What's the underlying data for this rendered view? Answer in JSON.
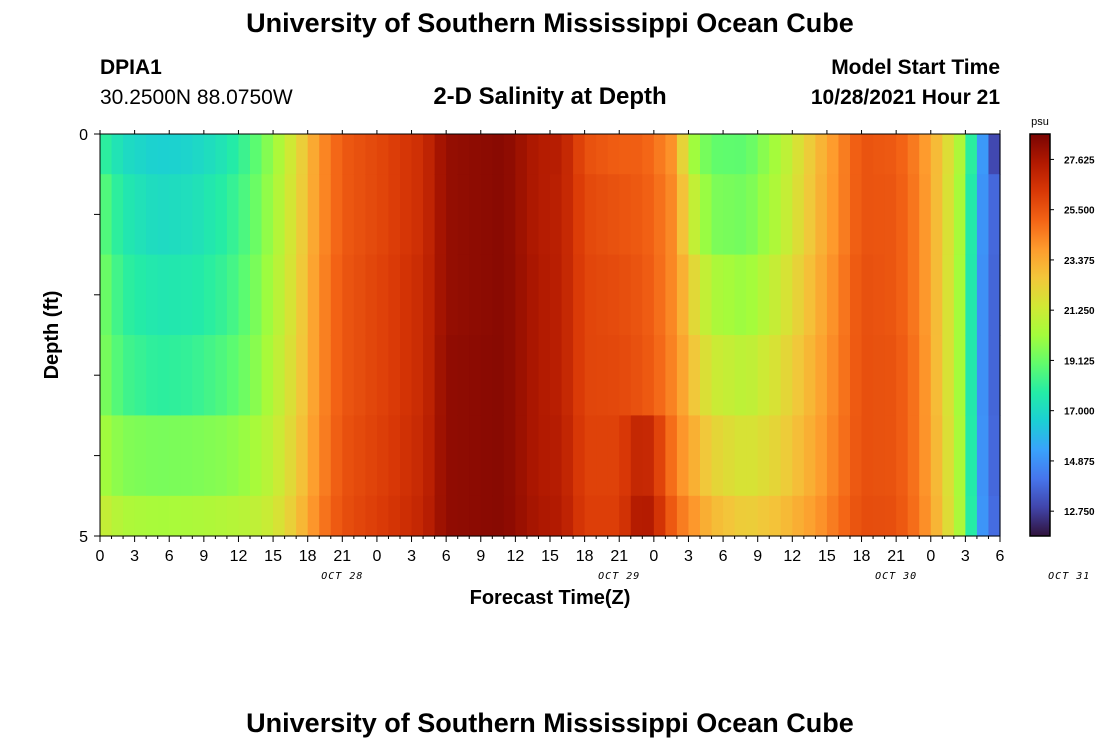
{
  "header": {
    "title": "University of Southern Mississippi Ocean Cube",
    "station_id": "DPIA1",
    "station_coords": "30.2500N  88.0750W",
    "plot_title": "2-D Salinity at Depth",
    "model_start_label": "Model Start Time",
    "model_start_time": "10/28/2021 Hour 21"
  },
  "footer": {
    "title": "University of Southern Mississippi Ocean Cube"
  },
  "chart_data": {
    "type": "heatmap",
    "title": "2-D Salinity at Depth",
    "xlabel": "Forecast Time(Z)",
    "ylabel": "Depth (ft)",
    "ylim": [
      0,
      5
    ],
    "y_ticks": [
      "0",
      "5"
    ],
    "x_tick_labels": [
      "0",
      "3",
      "6",
      "9",
      "12",
      "15",
      "18",
      "21",
      "0",
      "3",
      "6",
      "9",
      "12",
      "15",
      "18",
      "21",
      "0",
      "3",
      "6",
      "9",
      "12",
      "15",
      "18",
      "21",
      "0",
      "3",
      "6"
    ],
    "day_labels": [
      {
        "label": "OCT 28",
        "hour": 21
      },
      {
        "label": "OCT 29",
        "hour": 45
      },
      {
        "label": "OCT 30",
        "hour": 69
      },
      {
        "label": "OCT 31",
        "hour": 84
      }
    ],
    "x_hours_total": 78,
    "colorbar": {
      "unit": "psu",
      "min": 11.7,
      "max": 28.7,
      "labels": [
        "27.625",
        "25.500",
        "23.375",
        "21.250",
        "19.125",
        "17.000",
        "14.875",
        "12.750"
      ],
      "colors": [
        "#30123b",
        "#4145ab",
        "#4675ed",
        "#39a2fc",
        "#1bcfd4",
        "#24eca6",
        "#61fc6c",
        "#a4fc3b",
        "#d1e834",
        "#f3c63a",
        "#fe9b2d",
        "#f36315",
        "#d93806",
        "#b11901",
        "#7a0402"
      ]
    },
    "depth_layers": [
      0,
      1,
      2,
      3,
      4,
      5
    ],
    "time_keyframes": [
      {
        "hour": 0,
        "values": [
          18.2,
          19.0,
          19.5,
          19.7,
          20.3,
          21.2
        ]
      },
      {
        "hour": 2,
        "values": [
          17.1,
          17.6,
          18.0,
          18.4,
          19.6,
          20.5
        ]
      },
      {
        "hour": 5,
        "values": [
          16.6,
          17.0,
          17.5,
          17.9,
          19.4,
          20.3
        ]
      },
      {
        "hour": 8,
        "values": [
          16.8,
          17.2,
          17.6,
          18.1,
          19.5,
          20.4
        ]
      },
      {
        "hour": 11,
        "values": [
          17.5,
          17.9,
          18.2,
          18.7,
          19.7,
          20.6
        ]
      },
      {
        "hour": 13,
        "values": [
          18.5,
          18.8,
          19.1,
          19.4,
          20.1,
          20.8
        ]
      },
      {
        "hour": 15,
        "values": [
          20.0,
          20.2,
          20.4,
          20.6,
          20.9,
          21.3
        ]
      },
      {
        "hour": 17,
        "values": [
          21.8,
          21.9,
          22.0,
          22.1,
          22.3,
          22.6
        ]
      },
      {
        "hour": 19,
        "values": [
          24.0,
          24.0,
          24.1,
          24.1,
          24.2,
          24.4
        ]
      },
      {
        "hour": 21,
        "values": [
          25.3,
          25.3,
          25.4,
          25.4,
          25.5,
          25.6
        ]
      },
      {
        "hour": 25,
        "values": [
          26.0,
          26.0,
          26.1,
          26.1,
          26.2,
          26.3
        ]
      },
      {
        "hour": 28,
        "values": [
          26.7,
          26.7,
          26.8,
          26.8,
          26.9,
          27.0
        ]
      },
      {
        "hour": 30,
        "values": [
          28.1,
          28.1,
          28.1,
          28.2,
          28.2,
          28.2
        ]
      },
      {
        "hour": 35,
        "values": [
          28.4,
          28.4,
          28.4,
          28.4,
          28.4,
          28.4
        ]
      },
      {
        "hour": 38,
        "values": [
          27.4,
          27.4,
          27.5,
          27.5,
          27.5,
          27.6
        ]
      },
      {
        "hour": 40,
        "values": [
          27.3,
          27.2,
          27.2,
          27.2,
          27.3,
          27.4
        ]
      },
      {
        "hour": 42,
        "values": [
          25.6,
          25.8,
          25.9,
          25.9,
          26.0,
          26.1
        ]
      },
      {
        "hour": 45,
        "values": [
          25.2,
          25.5,
          25.7,
          25.8,
          26.0,
          26.1
        ]
      },
      {
        "hour": 47,
        "values": [
          25.2,
          25.3,
          25.4,
          25.5,
          27.2,
          27.8
        ]
      },
      {
        "hour": 48,
        "values": [
          24.8,
          25.0,
          25.1,
          25.2,
          26.5,
          27.0
        ]
      },
      {
        "hour": 50,
        "values": [
          23.8,
          24.0,
          24.0,
          24.1,
          24.3,
          24.8
        ]
      },
      {
        "hour": 51,
        "values": [
          20.5,
          21.5,
          22.5,
          23.0,
          23.6,
          24.2
        ]
      },
      {
        "hour": 53,
        "values": [
          19.0,
          19.5,
          20.5,
          21.3,
          22.2,
          23.0
        ]
      },
      {
        "hour": 56,
        "values": [
          18.9,
          19.3,
          20.0,
          20.8,
          21.5,
          22.3
        ]
      },
      {
        "hour": 59,
        "values": [
          20.5,
          20.7,
          21.3,
          21.8,
          22.2,
          22.8
        ]
      },
      {
        "hour": 62,
        "values": [
          22.8,
          22.9,
          23.1,
          23.3,
          23.5,
          23.8
        ]
      },
      {
        "hour": 66,
        "values": [
          25.5,
          25.5,
          25.6,
          25.6,
          25.6,
          25.7
        ]
      },
      {
        "hour": 69,
        "values": [
          25.3,
          25.4,
          25.4,
          25.5,
          25.5,
          25.6
        ]
      },
      {
        "hour": 71,
        "values": [
          24.3,
          24.4,
          24.4,
          24.5,
          24.5,
          24.6
        ]
      },
      {
        "hour": 73,
        "values": [
          22.5,
          22.4,
          22.4,
          22.4,
          22.5,
          22.6
        ]
      },
      {
        "hour": 75,
        "values": [
          19.8,
          19.6,
          19.5,
          19.5,
          19.6,
          19.7
        ]
      },
      {
        "hour": 76,
        "values": [
          16.0,
          15.8,
          15.7,
          15.7,
          15.8,
          15.9
        ]
      },
      {
        "hour": 77,
        "values": [
          14.2,
          14.1,
          14.0,
          14.0,
          14.0,
          14.1
        ]
      },
      {
        "hour": 78,
        "values": [
          11.8,
          13.5,
          13.5,
          13.5,
          13.6,
          13.7
        ]
      }
    ]
  }
}
